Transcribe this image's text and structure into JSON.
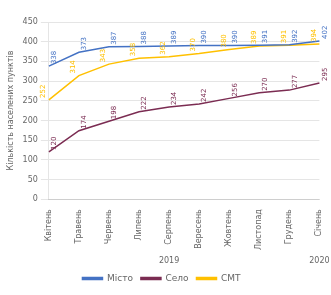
{
  "chart_data": {
    "type": "line",
    "categories": [
      "Квітень",
      "Травень",
      "Червень",
      "Липень",
      "Серпень",
      "Вересень",
      "Жовтень",
      "Листопад",
      "Грудень",
      "Січень"
    ],
    "series": [
      {
        "name": "Місто",
        "color": "#4472C4",
        "values": [
          338,
          373,
          387,
          388,
          389,
          390,
          390,
          391,
          392,
          402
        ]
      },
      {
        "name": "Село",
        "color": "#7B2C52",
        "values": [
          120,
          174,
          198,
          222,
          234,
          242,
          256,
          270,
          277,
          295
        ]
      },
      {
        "name": "СМТ",
        "color": "#FFC000",
        "values": [
          252,
          314,
          343,
          358,
          362,
          370,
          380,
          389,
          391,
          394
        ]
      }
    ],
    "ylabel": "Кількість населених пунктів",
    "ylim": [
      0,
      450
    ],
    "yticks": [
      0,
      50,
      100,
      150,
      200,
      250,
      300,
      350,
      400,
      450
    ],
    "grid": true,
    "legend": "bottom",
    "data_labels": true,
    "annotations": [
      {
        "text": "2019",
        "x": "Серпень"
      },
      {
        "text": "2020",
        "x": "Січень"
      }
    ]
  }
}
